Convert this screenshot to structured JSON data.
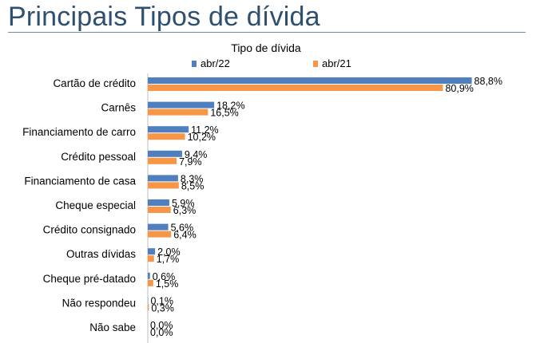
{
  "page": {
    "title": "Principais Tipos de dívida"
  },
  "colors": {
    "title": "#2f4f6f",
    "rule": "#6f8fa8",
    "axis": "#bfbfbf"
  },
  "chart_data": {
    "type": "bar",
    "orientation": "horizontal",
    "title": "Tipo de dívida",
    "legend_position": "top",
    "categories": [
      "Cartão de crédito",
      "Carnês",
      "Financiamento de carro",
      "Crédito pessoal",
      "Financiamento de casa",
      "Cheque especial",
      "Crédito consignado",
      "Outras dívidas",
      "Cheque pré-datado",
      "Não respondeu",
      "Não sabe"
    ],
    "series": [
      {
        "name": "abr/22",
        "color": "#4f7fbf",
        "values": [
          88.8,
          18.2,
          11.2,
          9.4,
          8.3,
          5.9,
          5.6,
          2.0,
          0.6,
          0.1,
          0.0
        ],
        "labels": [
          "88,8%",
          "18,2%",
          "11,2%",
          "9,4%",
          "8,3%",
          "5,9%",
          "5,6%",
          "2,0%",
          "0,6%",
          "0,1%",
          "0,0%"
        ]
      },
      {
        "name": "abr/21",
        "color": "#f79646",
        "values": [
          80.9,
          16.5,
          10.2,
          7.9,
          8.5,
          6.3,
          6.4,
          1.7,
          1.5,
          0.3,
          0.0
        ],
        "labels": [
          "80,9%",
          "16,5%",
          "10,2%",
          "7,9%",
          "8,5%",
          "6,3%",
          "6,4%",
          "1,7%",
          "1,5%",
          "0,3%",
          "0,0%"
        ]
      }
    ],
    "xlim": [
      0,
      100
    ],
    "grid": false
  }
}
